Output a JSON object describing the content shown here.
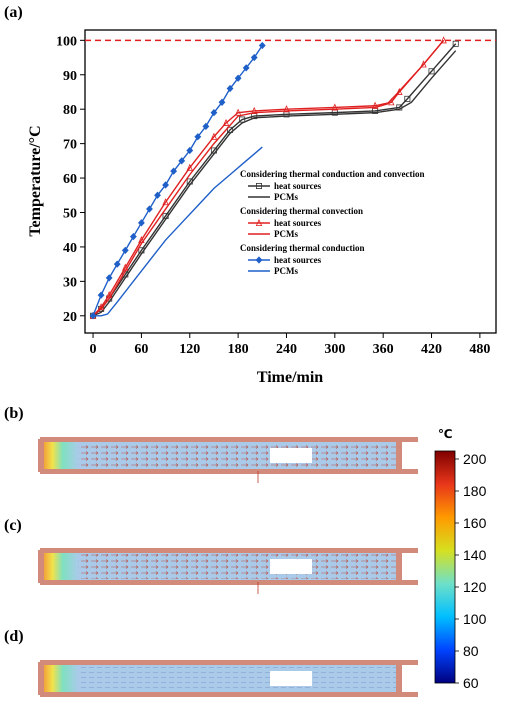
{
  "panels": {
    "a": "(a)",
    "b": "(b)",
    "c": "(c)",
    "d": "(d)"
  },
  "colors": {
    "black_series": "#333333",
    "red_series": "#e02020",
    "blue_series": "#1f5fc8",
    "reference_line": "#e02020",
    "sim_fluid": "#a9cbe9",
    "sim_wall": "#d28b7a",
    "sim_arrow": "#c0392b"
  },
  "chart_data": {
    "type": "line",
    "xlabel": "Time/min",
    "ylabel": "Temperature/°C",
    "xlim": [
      -10,
      500
    ],
    "ylim": [
      15,
      103
    ],
    "xticks": [
      "0",
      "60",
      "120",
      "180",
      "240",
      "300",
      "360",
      "420",
      "480"
    ],
    "yticks": [
      "20",
      "30",
      "40",
      "50",
      "60",
      "70",
      "80",
      "90",
      "100"
    ],
    "reference_line": {
      "y": 100,
      "style": "dashed"
    },
    "legend_groups": [
      "Considering thermal conduction and convection",
      "Considering thermal convection",
      "Considering thermal conduction"
    ],
    "series": [
      {
        "name": "heat sources",
        "group": 0,
        "color": "#333333",
        "marker": "square",
        "x": [
          0,
          10,
          20,
          40,
          60,
          90,
          120,
          150,
          170,
          185,
          200,
          240,
          300,
          350,
          380,
          390,
          420,
          450
        ],
        "y": [
          20,
          22,
          25,
          32,
          39,
          49,
          59,
          68,
          74,
          77,
          78,
          78.5,
          79,
          79.5,
          80.5,
          83,
          91,
          99
        ]
      },
      {
        "name": "PCMs",
        "group": 0,
        "color": "#333333",
        "marker": "none",
        "x": [
          0,
          10,
          20,
          40,
          60,
          90,
          120,
          150,
          170,
          185,
          200,
          240,
          300,
          350,
          380,
          395,
          420,
          450
        ],
        "y": [
          20,
          21,
          24,
          31,
          38,
          48,
          58,
          67,
          73,
          76,
          77.5,
          78,
          78.5,
          79,
          80,
          82,
          89,
          97
        ]
      },
      {
        "name": "heat sources",
        "group": 1,
        "color": "#e02020",
        "marker": "triangle",
        "x": [
          0,
          10,
          20,
          40,
          60,
          90,
          120,
          150,
          165,
          180,
          200,
          240,
          300,
          350,
          370,
          380,
          410,
          435
        ],
        "y": [
          20,
          22.5,
          26,
          34,
          42,
          53,
          63,
          72,
          76,
          79,
          79.5,
          80,
          80.5,
          81,
          82,
          85,
          93,
          100
        ]
      },
      {
        "name": "PCMs",
        "group": 1,
        "color": "#e02020",
        "marker": "none",
        "x": [
          0,
          10,
          20,
          40,
          60,
          90,
          120,
          150,
          165,
          180,
          200,
          240,
          300,
          350,
          365,
          375,
          410,
          435
        ],
        "y": [
          20,
          22,
          25,
          33,
          41,
          51,
          61,
          70,
          74,
          78,
          79,
          79.5,
          80,
          80.5,
          81.5,
          84,
          93,
          100
        ]
      },
      {
        "name": "heat sources",
        "group": 2,
        "color": "#1f5fc8",
        "marker": "diamond",
        "x": [
          0,
          10,
          20,
          30,
          40,
          50,
          60,
          70,
          80,
          90,
          100,
          110,
          120,
          130,
          140,
          150,
          160,
          170,
          180,
          190,
          200,
          210
        ],
        "y": [
          20,
          26,
          31,
          35,
          39,
          43,
          47,
          51,
          55,
          58,
          62,
          65,
          68,
          72,
          75,
          79,
          82,
          86,
          89,
          92,
          95,
          98.5
        ]
      },
      {
        "name": "PCMs",
        "group": 2,
        "color": "#1f5fc8",
        "marker": "none",
        "x": [
          0,
          10,
          18,
          30,
          50,
          70,
          90,
          110,
          130,
          150,
          170,
          190,
          210
        ],
        "y": [
          20,
          20,
          20.5,
          24,
          30,
          36,
          42,
          47,
          52,
          57,
          61,
          65,
          69
        ]
      }
    ]
  },
  "colorbar": {
    "unit": "℃",
    "ticks": [
      "60",
      "80",
      "100",
      "120",
      "140",
      "160",
      "180",
      "200"
    ],
    "range": [
      60,
      205
    ],
    "stops": [
      "#00007f",
      "#0044ff",
      "#00bfff",
      "#6fe0c8",
      "#d6e020",
      "#ff9a00",
      "#e8361a",
      "#7f0000"
    ]
  }
}
